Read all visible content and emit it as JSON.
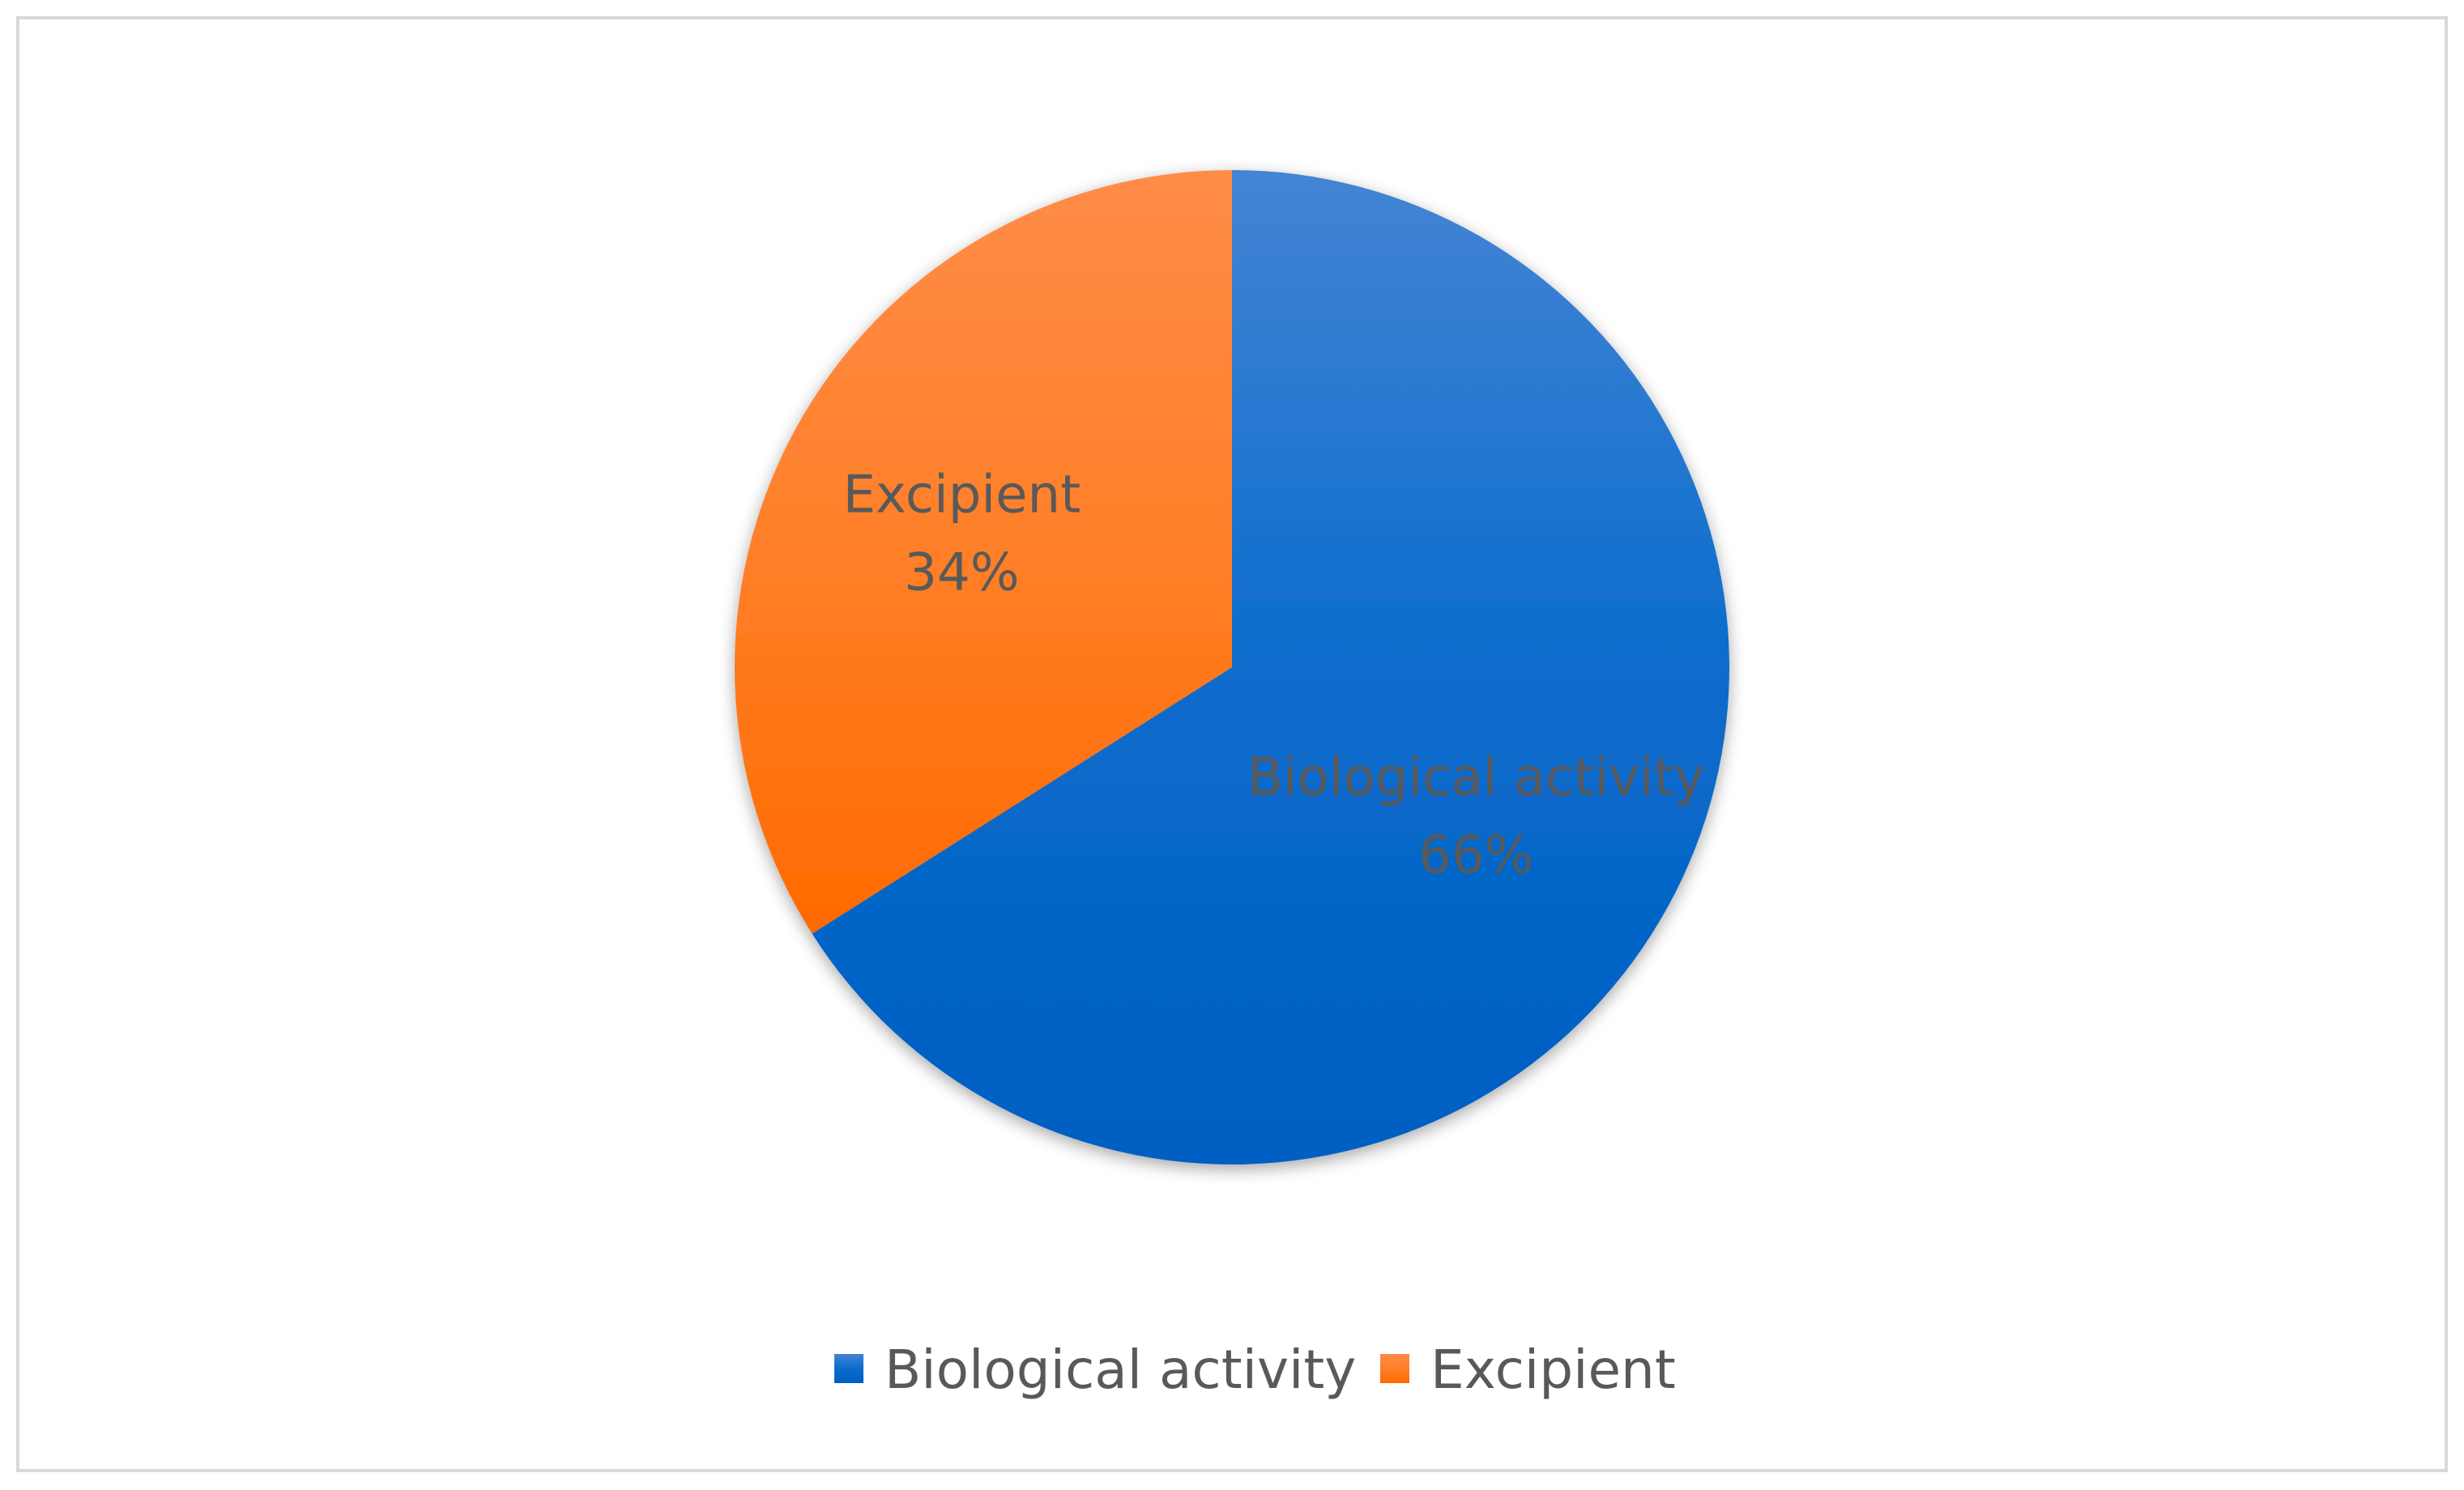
{
  "chart_data": {
    "type": "pie",
    "title": "",
    "categories": [
      "Biological activity",
      "Excipient"
    ],
    "values": [
      66,
      34
    ],
    "unit": "%",
    "data_labels": [
      {
        "name": "Biological activity",
        "value": "66%"
      },
      {
        "name": "Excipient",
        "value": "34%"
      }
    ],
    "colors": [
      "#0a64c8",
      "#ff7a1a"
    ],
    "legend": {
      "placement": "bottom",
      "entries": [
        "Biological activity",
        "Excipient"
      ]
    },
    "start_angle_deg": 0,
    "direction": "clockwise"
  }
}
